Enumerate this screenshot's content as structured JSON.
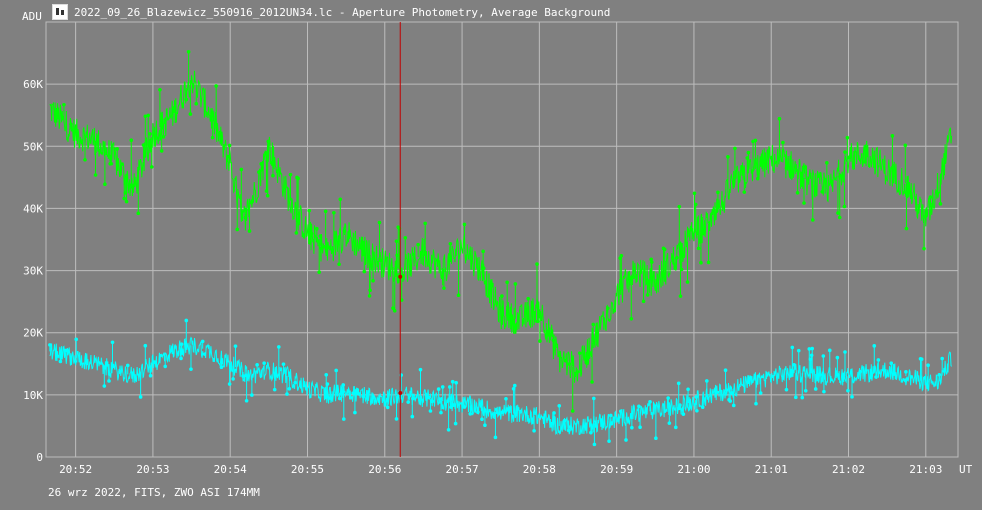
{
  "title": "2022_09_26_Blazewicz_550916_2012UN34.lc - Aperture Photometry, Average Background",
  "footer": "26 wrz 2022, FITS, ZWO ASI 174MM",
  "icons": {
    "app": "light-curve-app-icon"
  },
  "colors": {
    "background": "#808080",
    "grid": "#bdbdbd",
    "series_1": "#00ff00",
    "series_2": "#00ffff",
    "cursor": "#c00000",
    "text": "#ffffff"
  },
  "chart_data": {
    "type": "line",
    "ylabel": "ADU",
    "xlabel": "UT",
    "xlim": [
      "20:51:37",
      "21:03:25"
    ],
    "ylim": [
      0,
      70000
    ],
    "x_ticks": [
      "20:52",
      "20:53",
      "20:54",
      "20:55",
      "20:56",
      "20:57",
      "20:58",
      "20:59",
      "21:00",
      "21:01",
      "21:02",
      "21:03"
    ],
    "y_ticks": [
      "0",
      "10K",
      "20K",
      "30K",
      "40K",
      "50K",
      "60K"
    ],
    "y_tick_values": [
      0,
      10000,
      20000,
      30000,
      40000,
      50000,
      60000
    ],
    "grid": true,
    "cursor_time": "20:56:12",
    "series": [
      {
        "color": "#00ff00",
        "x": [
          "20:51:40",
          "20:52:00",
          "20:52:15",
          "20:52:30",
          "20:52:45",
          "20:53:00",
          "20:53:15",
          "20:53:30",
          "20:53:45",
          "20:54:00",
          "20:54:10",
          "20:54:20",
          "20:54:30",
          "20:54:45",
          "20:55:00",
          "20:55:15",
          "20:55:30",
          "20:55:45",
          "20:56:00",
          "20:56:15",
          "20:56:30",
          "20:56:45",
          "20:57:00",
          "20:57:15",
          "20:57:30",
          "20:57:45",
          "20:58:00",
          "20:58:15",
          "20:58:30",
          "20:58:45",
          "20:59:00",
          "20:59:15",
          "20:59:30",
          "20:59:45",
          "21:00:00",
          "21:00:15",
          "21:00:30",
          "21:00:45",
          "21:01:00",
          "21:01:15",
          "21:01:30",
          "21:01:45",
          "21:02:00",
          "21:02:15",
          "21:02:30",
          "21:02:45",
          "21:03:00",
          "21:03:10",
          "21:03:20"
        ],
        "values": [
          56000,
          52000,
          51000,
          48000,
          43000,
          52000,
          55000,
          61000,
          55000,
          47000,
          38000,
          43000,
          50000,
          42000,
          36000,
          33000,
          36000,
          33000,
          31000,
          30000,
          33000,
          30000,
          34000,
          30000,
          23000,
          22000,
          24000,
          16000,
          14000,
          20000,
          26000,
          30000,
          28000,
          32000,
          36000,
          38000,
          44000,
          46000,
          48000,
          47000,
          44000,
          43000,
          48000,
          49000,
          46000,
          44000,
          38000,
          44000,
          52000
        ],
        "noise": 2500
      },
      {
        "color": "#00ffff",
        "x": [
          "20:51:40",
          "20:52:00",
          "20:52:15",
          "20:52:30",
          "20:52:45",
          "20:53:00",
          "20:53:15",
          "20:53:30",
          "20:53:45",
          "20:54:00",
          "20:54:15",
          "20:54:30",
          "20:54:45",
          "20:55:00",
          "20:55:15",
          "20:55:30",
          "20:55:45",
          "20:56:00",
          "20:56:15",
          "20:56:30",
          "20:56:45",
          "20:57:00",
          "20:57:15",
          "20:57:30",
          "20:57:45",
          "20:58:00",
          "20:58:15",
          "20:58:30",
          "20:58:45",
          "20:59:00",
          "20:59:15",
          "20:59:30",
          "20:59:45",
          "21:00:00",
          "21:00:15",
          "21:00:30",
          "21:00:45",
          "21:01:00",
          "21:01:15",
          "21:01:30",
          "21:01:45",
          "21:02:00",
          "21:02:15",
          "21:02:30",
          "21:02:45",
          "21:03:00",
          "21:03:10",
          "21:03:20"
        ],
        "values": [
          17000,
          16000,
          15000,
          14000,
          13000,
          15000,
          17000,
          18000,
          17000,
          15000,
          13000,
          14000,
          13000,
          11000,
          10000,
          10500,
          10000,
          9500,
          10000,
          9500,
          9000,
          8500,
          8000,
          7000,
          7000,
          6500,
          5000,
          5000,
          5500,
          6000,
          7000,
          7500,
          8000,
          9000,
          10000,
          11000,
          12000,
          13000,
          13500,
          13500,
          13000,
          13000,
          13500,
          14000,
          13000,
          12000,
          12000,
          16000
        ],
        "noise": 1500
      }
    ]
  }
}
